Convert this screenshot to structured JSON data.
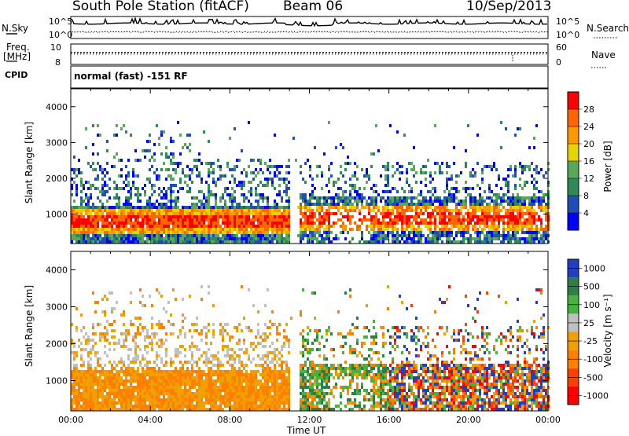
{
  "header": {
    "station": "South Pole Station (fitACF)",
    "beam": "Beam 06",
    "date": "10/Sep/2013"
  },
  "top_strips": {
    "nsky_label": "N.Sky",
    "nsearch_label": "N.Search",
    "noise_ticks": [
      "10^5",
      "10^0"
    ],
    "noise_ticks_right": [
      "10^5",
      "10^0"
    ],
    "freq_label_1": "Freq.",
    "freq_label_2": "[MHz]",
    "freq_ticks": [
      "10",
      "8"
    ],
    "nave_label": "Nave",
    "nave_ticks": [
      "60",
      "0"
    ],
    "cpid_label": "CPID",
    "cpid_text": "normal (fast) -151 RF"
  },
  "colors": {
    "power": [
      "#0000ff",
      "#1f4fb4",
      "#2e8b57",
      "#5aa85a",
      "#e6d400",
      "#ff9900",
      "#ff6600",
      "#ff0000"
    ],
    "velocity": [
      "#2040c0",
      "#2d7f4a",
      "#46b43c",
      "#c0c0c0",
      "#f0a000",
      "#ff8000",
      "#ff4000",
      "#ff0000"
    ]
  },
  "chart_data": [
    {
      "type": "heatmap",
      "name_key": "power",
      "ylabel": "Slant Range [km]",
      "xlabel": "",
      "ylim": [
        180,
        4500
      ],
      "xlim": [
        0,
        24
      ],
      "yticks": [
        "1000",
        "2000",
        "3000",
        "4000"
      ],
      "colorbar_label": "Power [dB]",
      "colorbar_ticks": [
        "4",
        "8",
        "12",
        "16",
        "20",
        "24",
        "28"
      ]
    },
    {
      "type": "heatmap",
      "name_key": "velocity",
      "ylabel": "Slant Range [km]",
      "xlabel": "Time UT",
      "ylim": [
        180,
        4500
      ],
      "xlim": [
        0,
        24
      ],
      "yticks": [
        "1000",
        "2000",
        "3000",
        "4000"
      ],
      "xticks": [
        "00:00",
        "04:00",
        "08:00",
        "12:00",
        "16:00",
        "20:00",
        "00:00"
      ],
      "colorbar_label": "Velocity [m s⁻¹]",
      "colorbar_ticks": [
        "1000",
        "500",
        "100",
        "25",
        "-25",
        "-100",
        "-500",
        "-1000"
      ]
    }
  ]
}
